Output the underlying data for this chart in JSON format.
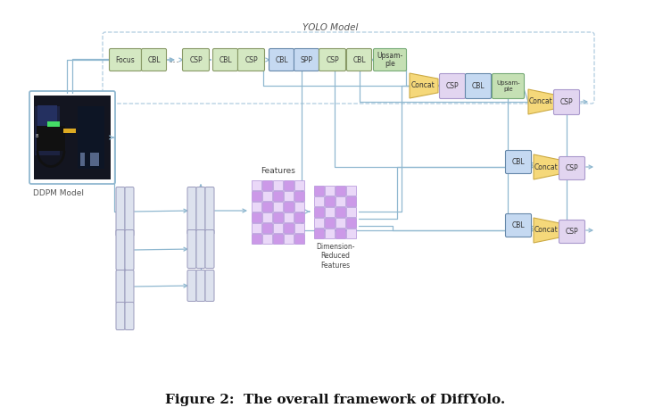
{
  "caption": "Figure 2:  The overall framework of DiffYolo.",
  "yolo_label": "YOLO Model",
  "ddpm_label": "DDPM Model",
  "c_green": "#d4e8c2",
  "c_blue": "#c5d9f1",
  "c_purple": "#e2d5f0",
  "c_yellow": "#f5d87a",
  "c_upsample": "#c5e0b4",
  "c_gray_bar": "#dde2ee",
  "c_arrow": "#90b8d0",
  "c_feat_dark": "#cc99e8",
  "c_feat_light": "#ead8f8",
  "c_img_border": "#90b8d0",
  "c_yolo_border": "#b0cce0"
}
